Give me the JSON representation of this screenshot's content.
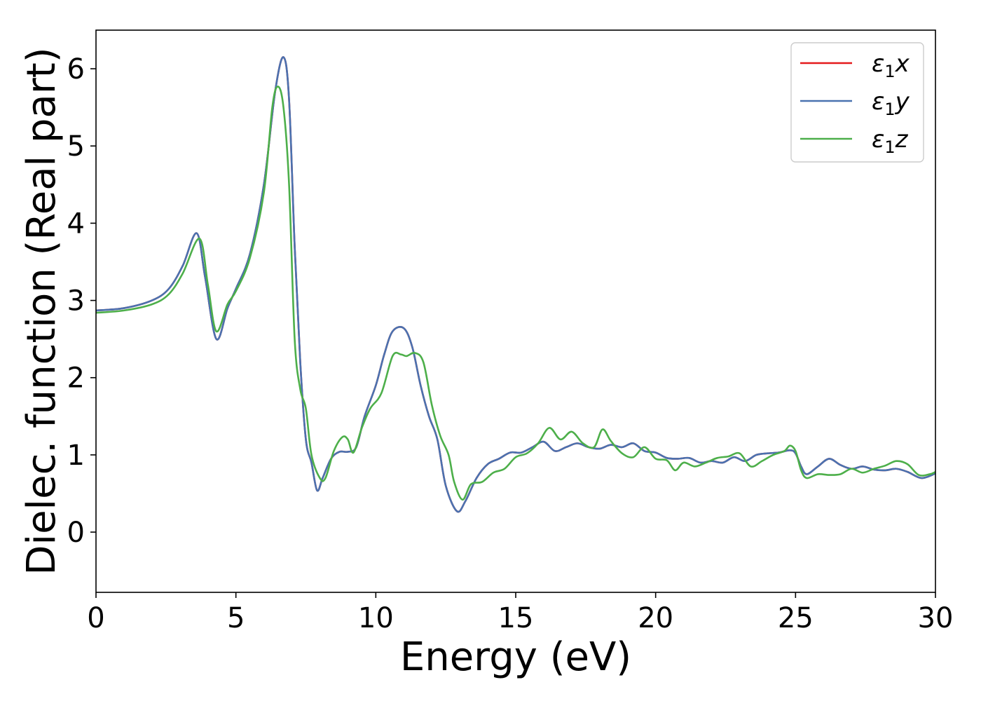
{
  "chart_data": {
    "type": "line",
    "title": "",
    "xlabel": "Energy (eV)",
    "ylabel": "Dielec. function (Real part)",
    "xlim": [
      0,
      30
    ],
    "ylim": [
      -0.78,
      6.5
    ],
    "xticks": [
      0,
      5,
      10,
      15,
      20,
      25,
      30
    ],
    "yticks": [
      0,
      1,
      2,
      3,
      4,
      5,
      6
    ],
    "grid": false,
    "legend_position": "top-right",
    "series": [
      {
        "name": "ε1x",
        "legend_base": "ε",
        "legend_sub": "1",
        "legend_suffix": "x",
        "color": "#e41a1c",
        "points": [
          [
            0,
            2.87
          ],
          [
            1,
            2.9
          ],
          [
            2,
            3.0
          ],
          [
            2.6,
            3.15
          ],
          [
            3.1,
            3.45
          ],
          [
            3.6,
            3.87
          ],
          [
            3.9,
            3.3
          ],
          [
            4.3,
            2.5
          ],
          [
            4.7,
            2.9
          ],
          [
            5,
            3.15
          ],
          [
            5.5,
            3.6
          ],
          [
            6.0,
            4.5
          ],
          [
            6.4,
            5.7
          ],
          [
            6.7,
            6.15
          ],
          [
            6.9,
            5.6
          ],
          [
            7.1,
            3.7
          ],
          [
            7.3,
            2.2
          ],
          [
            7.5,
            1.2
          ],
          [
            7.7,
            0.9
          ],
          [
            7.9,
            0.54
          ],
          [
            8.1,
            0.7
          ],
          [
            8.4,
            0.95
          ],
          [
            8.7,
            1.04
          ],
          [
            9.0,
            1.04
          ],
          [
            9.3,
            1.1
          ],
          [
            9.6,
            1.5
          ],
          [
            10.0,
            1.9
          ],
          [
            10.3,
            2.3
          ],
          [
            10.6,
            2.6
          ],
          [
            11.0,
            2.64
          ],
          [
            11.3,
            2.4
          ],
          [
            11.6,
            1.9
          ],
          [
            11.9,
            1.5
          ],
          [
            12.2,
            1.2
          ],
          [
            12.5,
            0.6
          ],
          [
            12.9,
            0.27
          ],
          [
            13.2,
            0.4
          ],
          [
            13.6,
            0.7
          ],
          [
            14.0,
            0.88
          ],
          [
            14.4,
            0.95
          ],
          [
            14.8,
            1.03
          ],
          [
            15.2,
            1.03
          ],
          [
            15.6,
            1.1
          ],
          [
            16.0,
            1.17
          ],
          [
            16.4,
            1.05
          ],
          [
            16.8,
            1.1
          ],
          [
            17.2,
            1.15
          ],
          [
            17.6,
            1.1
          ],
          [
            18.0,
            1.08
          ],
          [
            18.4,
            1.13
          ],
          [
            18.8,
            1.1
          ],
          [
            19.2,
            1.15
          ],
          [
            19.6,
            1.05
          ],
          [
            20.0,
            1.03
          ],
          [
            20.4,
            0.96
          ],
          [
            20.8,
            0.95
          ],
          [
            21.2,
            0.96
          ],
          [
            21.6,
            0.9
          ],
          [
            22.0,
            0.92
          ],
          [
            22.4,
            0.9
          ],
          [
            22.8,
            0.97
          ],
          [
            23.2,
            0.92
          ],
          [
            23.6,
            1.0
          ],
          [
            24.0,
            1.02
          ],
          [
            24.4,
            1.03
          ],
          [
            24.8,
            1.06
          ],
          [
            25.0,
            1.02
          ],
          [
            25.2,
            0.85
          ],
          [
            25.4,
            0.75
          ],
          [
            25.8,
            0.85
          ],
          [
            26.2,
            0.95
          ],
          [
            26.6,
            0.87
          ],
          [
            27.0,
            0.82
          ],
          [
            27.4,
            0.85
          ],
          [
            27.8,
            0.81
          ],
          [
            28.2,
            0.8
          ],
          [
            28.6,
            0.82
          ],
          [
            29.0,
            0.78
          ],
          [
            29.5,
            0.7
          ],
          [
            30.0,
            0.76
          ]
        ]
      },
      {
        "name": "ε1y",
        "legend_base": "ε",
        "legend_sub": "1",
        "legend_suffix": "y",
        "color": "#4a72b0",
        "points": [
          [
            0,
            2.87
          ],
          [
            1,
            2.9
          ],
          [
            2,
            3.0
          ],
          [
            2.6,
            3.15
          ],
          [
            3.1,
            3.45
          ],
          [
            3.6,
            3.87
          ],
          [
            3.9,
            3.3
          ],
          [
            4.3,
            2.5
          ],
          [
            4.7,
            2.9
          ],
          [
            5,
            3.15
          ],
          [
            5.5,
            3.6
          ],
          [
            6.0,
            4.5
          ],
          [
            6.4,
            5.7
          ],
          [
            6.7,
            6.15
          ],
          [
            6.9,
            5.6
          ],
          [
            7.1,
            3.7
          ],
          [
            7.3,
            2.2
          ],
          [
            7.5,
            1.2
          ],
          [
            7.7,
            0.9
          ],
          [
            7.9,
            0.54
          ],
          [
            8.1,
            0.7
          ],
          [
            8.4,
            0.95
          ],
          [
            8.7,
            1.04
          ],
          [
            9.0,
            1.04
          ],
          [
            9.3,
            1.1
          ],
          [
            9.6,
            1.5
          ],
          [
            10.0,
            1.9
          ],
          [
            10.3,
            2.3
          ],
          [
            10.6,
            2.6
          ],
          [
            11.0,
            2.64
          ],
          [
            11.3,
            2.4
          ],
          [
            11.6,
            1.9
          ],
          [
            11.9,
            1.5
          ],
          [
            12.2,
            1.2
          ],
          [
            12.5,
            0.6
          ],
          [
            12.9,
            0.27
          ],
          [
            13.2,
            0.4
          ],
          [
            13.6,
            0.7
          ],
          [
            14.0,
            0.88
          ],
          [
            14.4,
            0.95
          ],
          [
            14.8,
            1.03
          ],
          [
            15.2,
            1.03
          ],
          [
            15.6,
            1.1
          ],
          [
            16.0,
            1.17
          ],
          [
            16.4,
            1.05
          ],
          [
            16.8,
            1.1
          ],
          [
            17.2,
            1.15
          ],
          [
            17.6,
            1.1
          ],
          [
            18.0,
            1.08
          ],
          [
            18.4,
            1.13
          ],
          [
            18.8,
            1.1
          ],
          [
            19.2,
            1.15
          ],
          [
            19.6,
            1.05
          ],
          [
            20.0,
            1.03
          ],
          [
            20.4,
            0.96
          ],
          [
            20.8,
            0.95
          ],
          [
            21.2,
            0.96
          ],
          [
            21.6,
            0.9
          ],
          [
            22.0,
            0.92
          ],
          [
            22.4,
            0.9
          ],
          [
            22.8,
            0.97
          ],
          [
            23.2,
            0.92
          ],
          [
            23.6,
            1.0
          ],
          [
            24.0,
            1.02
          ],
          [
            24.4,
            1.03
          ],
          [
            24.8,
            1.06
          ],
          [
            25.0,
            1.02
          ],
          [
            25.2,
            0.85
          ],
          [
            25.4,
            0.75
          ],
          [
            25.8,
            0.85
          ],
          [
            26.2,
            0.95
          ],
          [
            26.6,
            0.87
          ],
          [
            27.0,
            0.82
          ],
          [
            27.4,
            0.85
          ],
          [
            27.8,
            0.81
          ],
          [
            28.2,
            0.8
          ],
          [
            28.6,
            0.82
          ],
          [
            29.0,
            0.78
          ],
          [
            29.5,
            0.7
          ],
          [
            30.0,
            0.76
          ]
        ]
      },
      {
        "name": "ε1z",
        "legend_base": "ε",
        "legend_sub": "1",
        "legend_suffix": "z",
        "color": "#4daf4a",
        "points": [
          [
            0,
            2.84
          ],
          [
            1,
            2.87
          ],
          [
            2,
            2.95
          ],
          [
            2.6,
            3.08
          ],
          [
            3.1,
            3.35
          ],
          [
            3.7,
            3.8
          ],
          [
            4.0,
            3.2
          ],
          [
            4.3,
            2.6
          ],
          [
            4.7,
            2.95
          ],
          [
            5,
            3.12
          ],
          [
            5.5,
            3.55
          ],
          [
            6.0,
            4.4
          ],
          [
            6.3,
            5.5
          ],
          [
            6.5,
            5.77
          ],
          [
            6.7,
            5.5
          ],
          [
            6.9,
            4.5
          ],
          [
            7.1,
            2.5
          ],
          [
            7.3,
            1.85
          ],
          [
            7.5,
            1.6
          ],
          [
            7.7,
            1.0
          ],
          [
            8.0,
            0.7
          ],
          [
            8.2,
            0.7
          ],
          [
            8.5,
            1.05
          ],
          [
            8.8,
            1.23
          ],
          [
            9.0,
            1.2
          ],
          [
            9.2,
            1.03
          ],
          [
            9.5,
            1.35
          ],
          [
            9.8,
            1.6
          ],
          [
            10.2,
            1.8
          ],
          [
            10.6,
            2.28
          ],
          [
            10.9,
            2.3
          ],
          [
            11.1,
            2.28
          ],
          [
            11.4,
            2.32
          ],
          [
            11.7,
            2.2
          ],
          [
            12.0,
            1.65
          ],
          [
            12.3,
            1.25
          ],
          [
            12.6,
            1.0
          ],
          [
            12.8,
            0.65
          ],
          [
            13.1,
            0.42
          ],
          [
            13.4,
            0.62
          ],
          [
            13.8,
            0.65
          ],
          [
            14.2,
            0.77
          ],
          [
            14.6,
            0.82
          ],
          [
            15.0,
            0.97
          ],
          [
            15.4,
            1.02
          ],
          [
            15.8,
            1.15
          ],
          [
            16.2,
            1.35
          ],
          [
            16.6,
            1.2
          ],
          [
            17.0,
            1.3
          ],
          [
            17.4,
            1.15
          ],
          [
            17.8,
            1.1
          ],
          [
            18.1,
            1.33
          ],
          [
            18.4,
            1.18
          ],
          [
            18.8,
            1.02
          ],
          [
            19.2,
            0.97
          ],
          [
            19.6,
            1.1
          ],
          [
            20.0,
            0.95
          ],
          [
            20.4,
            0.93
          ],
          [
            20.7,
            0.8
          ],
          [
            21.0,
            0.9
          ],
          [
            21.4,
            0.85
          ],
          [
            21.8,
            0.9
          ],
          [
            22.2,
            0.96
          ],
          [
            22.6,
            0.98
          ],
          [
            23.0,
            1.02
          ],
          [
            23.4,
            0.85
          ],
          [
            23.8,
            0.92
          ],
          [
            24.2,
            1.0
          ],
          [
            24.6,
            1.05
          ],
          [
            24.8,
            1.12
          ],
          [
            25.0,
            1.05
          ],
          [
            25.2,
            0.8
          ],
          [
            25.4,
            0.7
          ],
          [
            25.8,
            0.75
          ],
          [
            26.2,
            0.74
          ],
          [
            26.6,
            0.75
          ],
          [
            27.0,
            0.82
          ],
          [
            27.4,
            0.77
          ],
          [
            27.8,
            0.82
          ],
          [
            28.2,
            0.86
          ],
          [
            28.6,
            0.92
          ],
          [
            29.0,
            0.88
          ],
          [
            29.4,
            0.74
          ],
          [
            29.8,
            0.75
          ],
          [
            30.0,
            0.78
          ]
        ]
      }
    ]
  }
}
